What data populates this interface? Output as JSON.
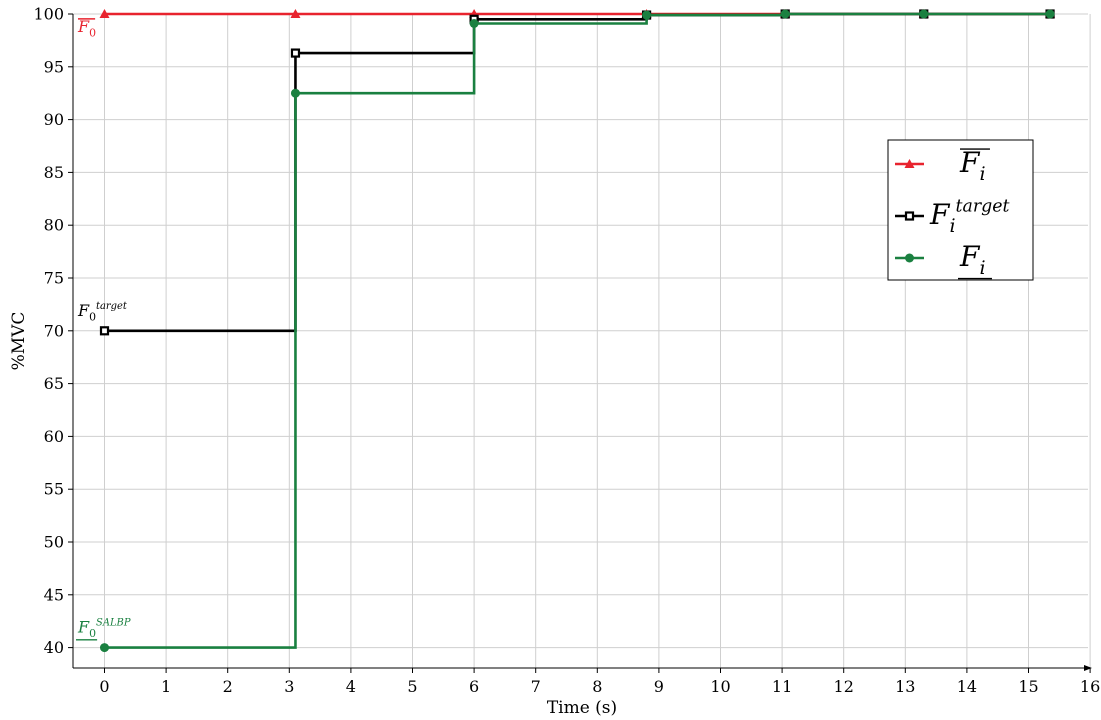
{
  "chart_data": {
    "type": "line",
    "step": "post",
    "xlabel": "Time (s)",
    "ylabel": "%MVC",
    "xlim": [
      -0.5,
      16
    ],
    "ylim": [
      38.3,
      100
    ],
    "x_ticks": [
      0,
      1,
      2,
      3,
      4,
      5,
      6,
      7,
      8,
      9,
      10,
      11,
      12,
      13,
      14,
      15,
      16
    ],
    "y_ticks": [
      40,
      45,
      50,
      55,
      60,
      65,
      70,
      75,
      80,
      85,
      90,
      95,
      100
    ],
    "grid": true,
    "legend_position": "right",
    "series": [
      {
        "legend": {
          "base": "F",
          "sub": "i",
          "sup": "",
          "decoration": "overline"
        },
        "color": "#e8232e",
        "marker": "triangle",
        "x": [
          0,
          3.1,
          6,
          8.8,
          11.05,
          13.3,
          15.35
        ],
        "y": [
          100,
          100,
          100,
          100,
          100,
          100,
          100
        ]
      },
      {
        "legend": {
          "base": "F",
          "sub": "i",
          "sup": "target",
          "decoration": "none"
        },
        "color": "#000000",
        "marker": "square",
        "x": [
          0,
          3.1,
          6,
          8.8,
          11.05,
          13.3,
          15.35
        ],
        "y": [
          70,
          96.3,
          99.5,
          99.9,
          100,
          100,
          100
        ]
      },
      {
        "legend": {
          "base": "F",
          "sub": "i",
          "sup": "",
          "decoration": "underline"
        },
        "color": "#1a8040",
        "marker": "circle",
        "x": [
          0,
          3.1,
          6,
          8.8,
          11.05,
          13.3,
          15.35
        ],
        "y": [
          40,
          92.5,
          99.1,
          99.9,
          100,
          100,
          100
        ]
      }
    ],
    "annotations": [
      {
        "base": "F",
        "sub": "0",
        "sup": "",
        "decoration": "overline",
        "color": "#e8232e",
        "x": 0,
        "y": 100,
        "placement": "below"
      },
      {
        "base": "F",
        "sub": "0",
        "sup": "target",
        "decoration": "none",
        "color": "#000000",
        "x": 0,
        "y": 70,
        "placement": "above"
      },
      {
        "base": "F",
        "sub": "0",
        "sup": "SALBP",
        "decoration": "underline",
        "color": "#1a8040",
        "x": 0,
        "y": 40,
        "placement": "above"
      }
    ]
  }
}
